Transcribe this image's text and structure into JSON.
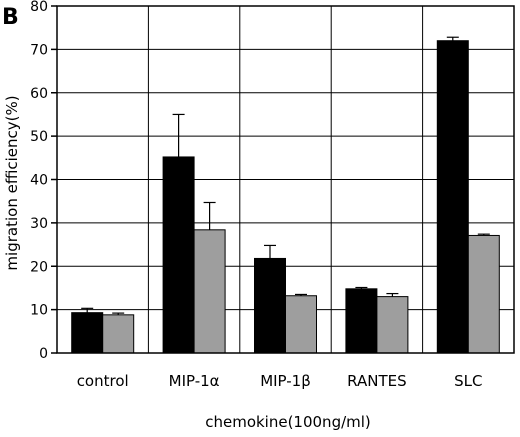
{
  "panel_label": "B",
  "chart_data": {
    "type": "bar",
    "title": "",
    "xlabel": "chemokine(100ng/ml)",
    "ylabel": "migration efficiency(%)",
    "ylim": [
      0,
      80
    ],
    "yticks": [
      0,
      10,
      20,
      30,
      40,
      50,
      60,
      70,
      80
    ],
    "grid": true,
    "categories": [
      "control",
      "MIP-1α",
      "MIP-1β",
      "RANTES",
      "SLC"
    ],
    "series": [
      {
        "color": "#000000",
        "values": [
          9.3,
          45.2,
          21.8,
          14.8,
          72.0
        ],
        "errors": [
          1.0,
          9.8,
          3.0,
          0.3,
          0.8
        ]
      },
      {
        "color": "#9e9e9e",
        "values": [
          8.8,
          28.4,
          13.2,
          13.0,
          27.1
        ],
        "errors": [
          0.4,
          6.3,
          0.3,
          0.7,
          0.3
        ]
      }
    ]
  }
}
